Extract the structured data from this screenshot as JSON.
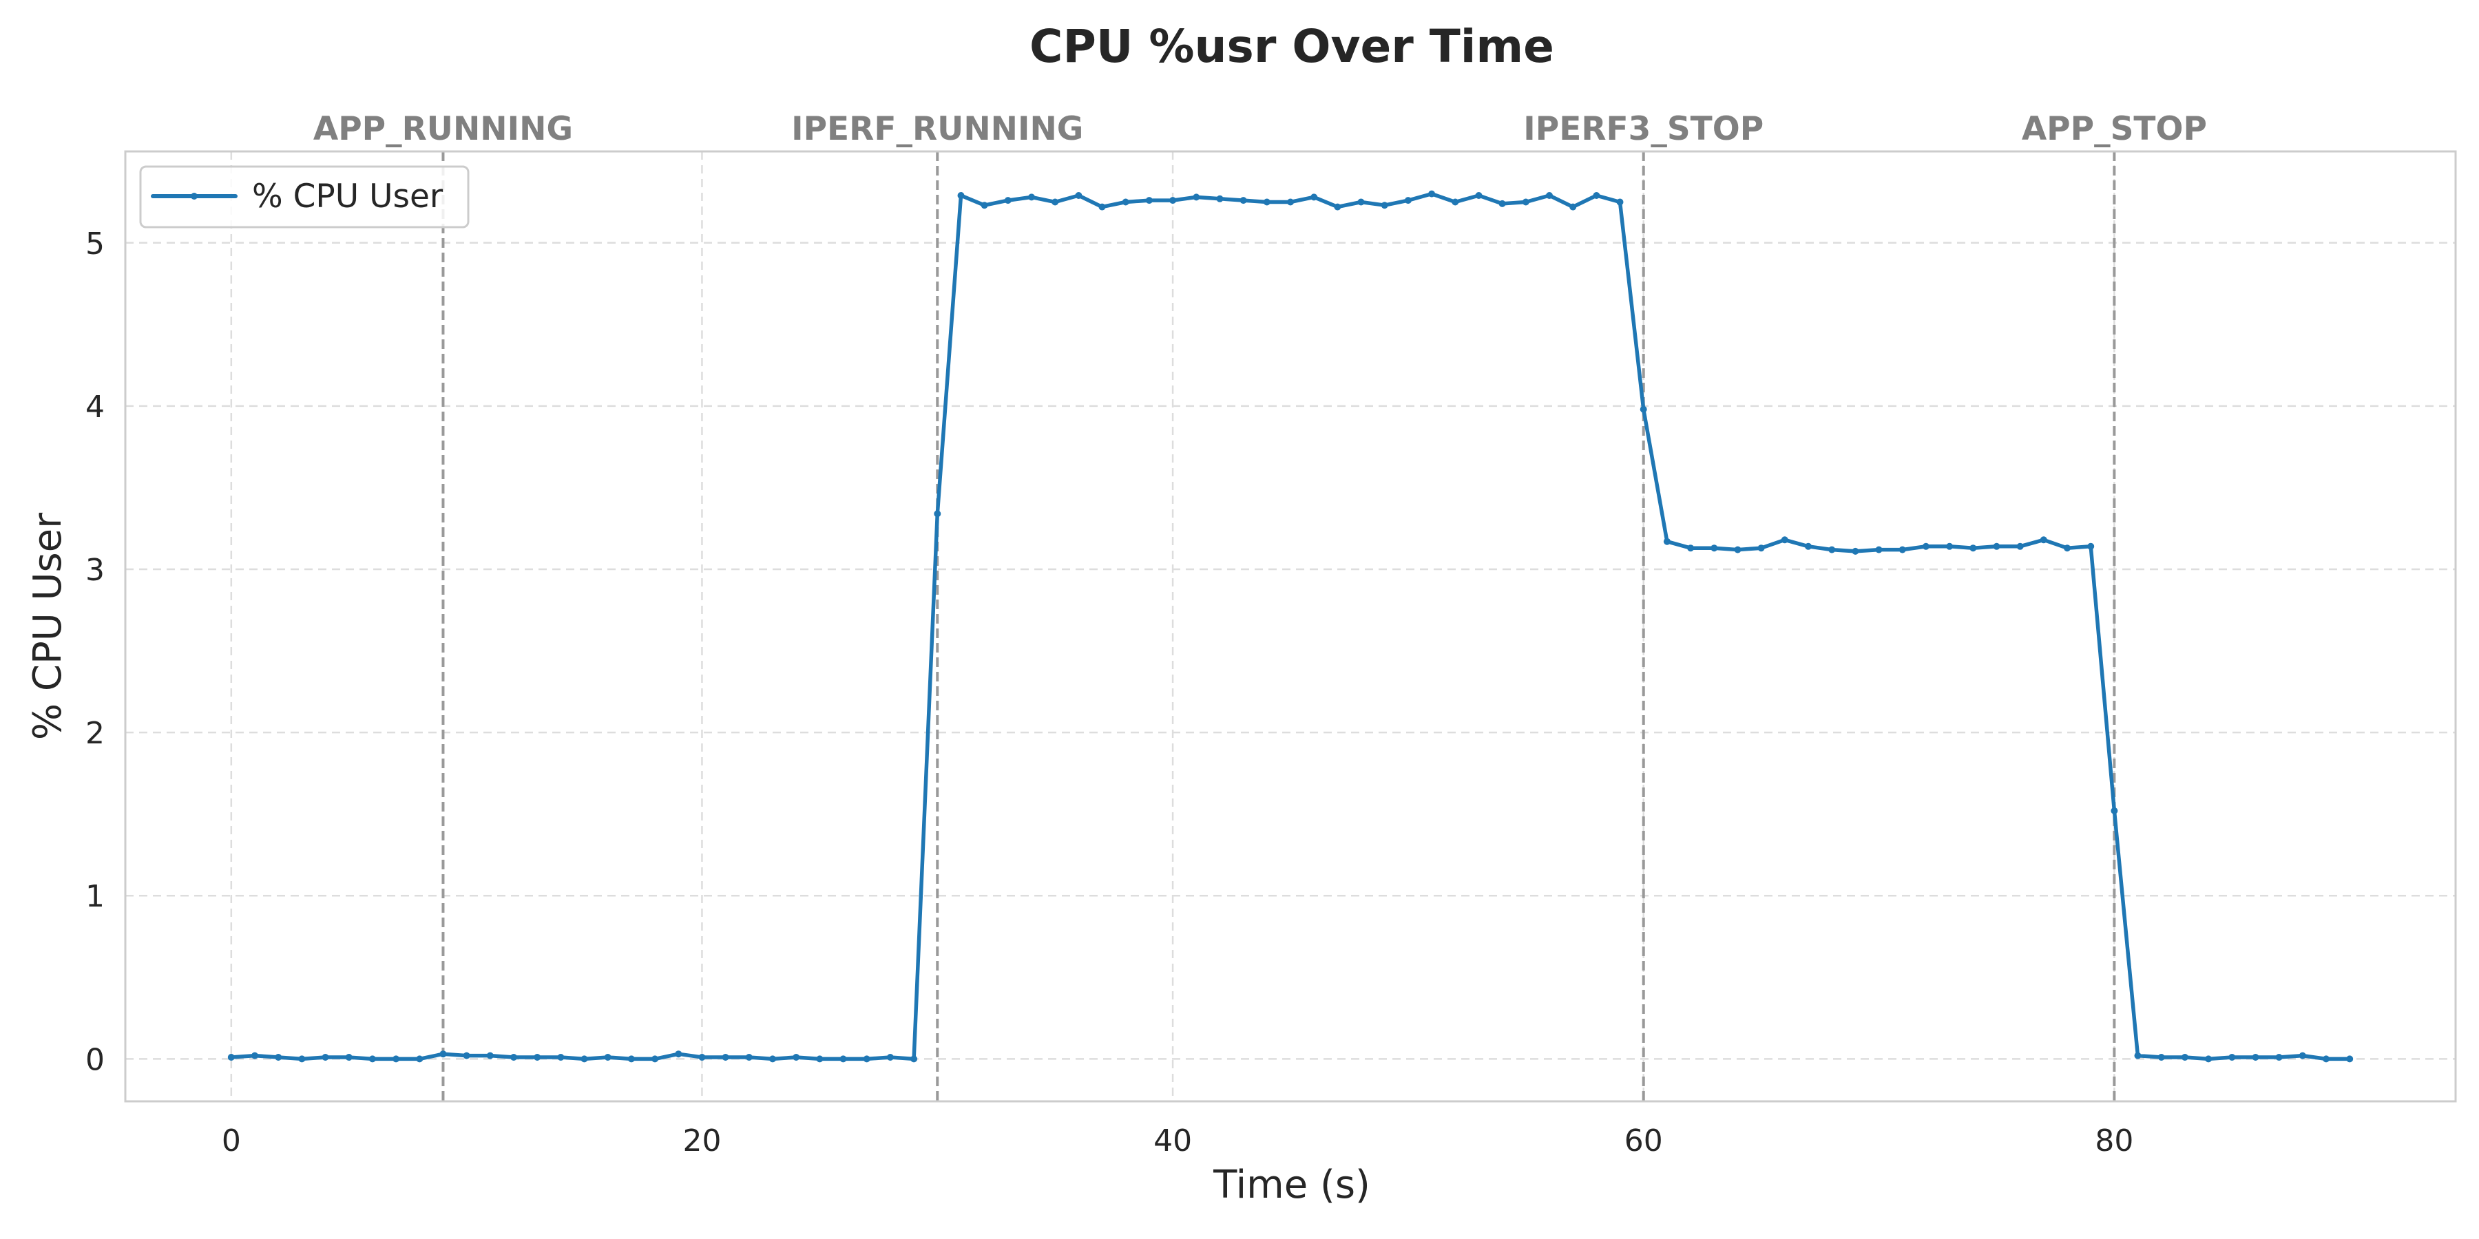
{
  "chart_data": {
    "type": "line",
    "title": "CPU %usr Over Time",
    "xlabel": "Time (s)",
    "ylabel": "% CPU User",
    "xlim": [
      -4.5,
      94.5
    ],
    "ylim": [
      -0.26,
      5.56
    ],
    "xticks": [
      0,
      20,
      40,
      60,
      80
    ],
    "yticks": [
      0,
      1,
      2,
      3,
      4,
      5
    ],
    "grid": true,
    "grid_style": "dashed",
    "legend_position": "upper-left",
    "series": [
      {
        "name": "% CPU User",
        "color": "#1f77b4",
        "marker": "point",
        "x": [
          0,
          1,
          2,
          3,
          4,
          5,
          6,
          7,
          8,
          9,
          10,
          11,
          12,
          13,
          14,
          15,
          16,
          17,
          18,
          19,
          20,
          21,
          22,
          23,
          24,
          25,
          26,
          27,
          28,
          29,
          30,
          31,
          32,
          33,
          34,
          35,
          36,
          37,
          38,
          39,
          40,
          41,
          42,
          43,
          44,
          45,
          46,
          47,
          48,
          49,
          50,
          51,
          52,
          53,
          54,
          55,
          56,
          57,
          58,
          59,
          60,
          61,
          62,
          63,
          64,
          65,
          66,
          67,
          68,
          69,
          70,
          71,
          72,
          73,
          74,
          75,
          76,
          77,
          78,
          79,
          80,
          81,
          82,
          83,
          84,
          85,
          86,
          87,
          88,
          89,
          90
        ],
        "y": [
          0.01,
          0.02,
          0.01,
          0.0,
          0.01,
          0.01,
          0.0,
          0.0,
          0.0,
          0.03,
          0.02,
          0.02,
          0.01,
          0.01,
          0.01,
          0.0,
          0.01,
          0.0,
          0.0,
          0.03,
          0.01,
          0.01,
          0.01,
          0.0,
          0.01,
          0.0,
          0.0,
          0.0,
          0.01,
          0.0,
          3.34,
          5.29,
          5.23,
          5.26,
          5.28,
          5.25,
          5.29,
          5.22,
          5.25,
          5.26,
          5.26,
          5.28,
          5.27,
          5.26,
          5.25,
          5.25,
          5.28,
          5.22,
          5.25,
          5.23,
          5.26,
          5.3,
          5.25,
          5.29,
          5.24,
          5.25,
          5.29,
          5.22,
          5.29,
          5.25,
          3.98,
          3.17,
          3.13,
          3.13,
          3.12,
          3.13,
          3.18,
          3.14,
          3.12,
          3.11,
          3.12,
          3.12,
          3.14,
          3.14,
          3.13,
          3.14,
          3.14,
          3.18,
          3.13,
          3.14,
          1.52,
          0.02,
          0.01,
          0.01,
          0.0,
          0.01,
          0.01,
          0.01,
          0.02,
          0.0,
          0.0
        ]
      }
    ],
    "events": [
      {
        "label": "APP_RUNNING",
        "x": 9
      },
      {
        "label": "IPERF_RUNNING",
        "x": 30
      },
      {
        "label": "IPERF3_STOP",
        "x": 60
      },
      {
        "label": "APP_STOP",
        "x": 80
      }
    ]
  }
}
